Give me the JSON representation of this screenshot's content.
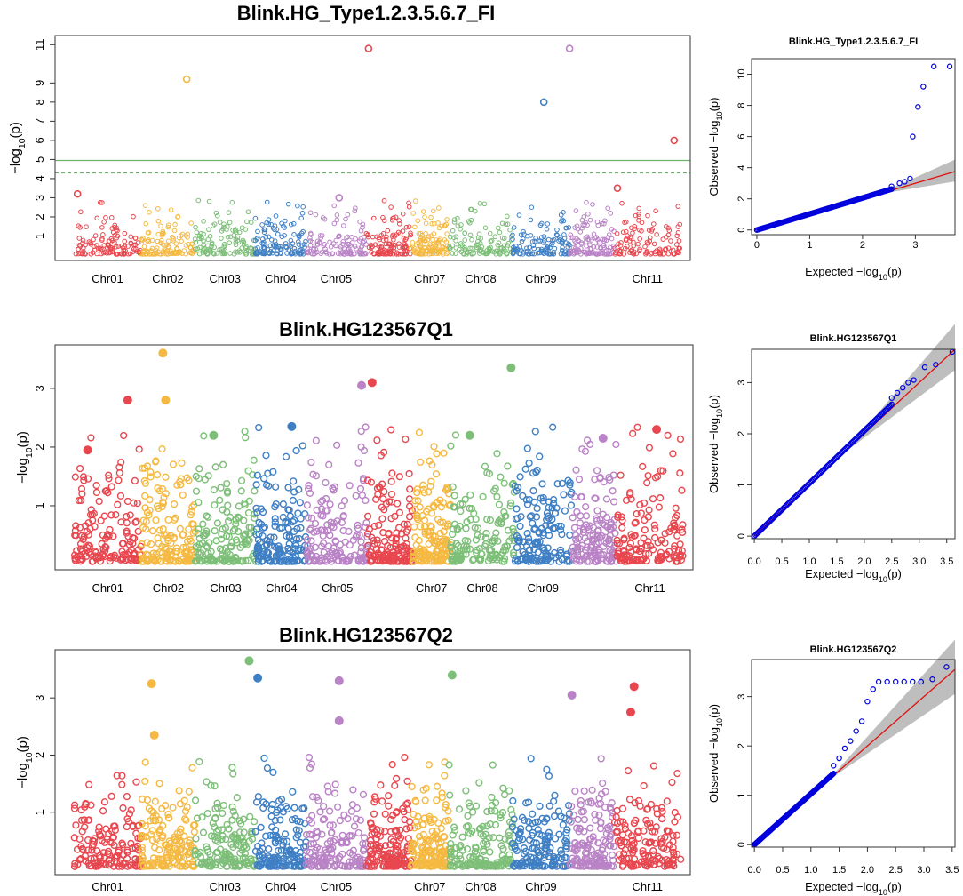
{
  "chart_data": [
    {
      "type": "scatter",
      "title": "Blink.HG_Type1.2.3.5.6.7_FI",
      "ylabel_prefix": "−log",
      "ylabel_sub": "10",
      "ylabel_suffix": "(p)",
      "ylim": [
        0,
        11.2
      ],
      "yticks": [
        1,
        2,
        3,
        4,
        5,
        6,
        7,
        8,
        9,
        11
      ],
      "threshold_solid": 4.95,
      "threshold_dashed": 4.3,
      "threshold_color": "#6BB36B",
      "chromosome_labels": [
        "Chr01",
        "Chr02",
        "Chr03",
        "Chr04",
        "Chr05",
        "Chr07",
        "Chr08",
        "Chr09",
        "Chr11"
      ],
      "label_positions": [
        1,
        2,
        3,
        4,
        5,
        7,
        8,
        9,
        11
      ],
      "seed": 11,
      "ambient_max": 1.6,
      "peaks": [
        {
          "chr": 1,
          "pos": 0.05,
          "value": 3.2
        },
        {
          "chr": 2,
          "pos": 0.85,
          "value": 9.2
        },
        {
          "chr": 5,
          "pos": 0.55,
          "value": 3.0
        },
        {
          "chr": 6,
          "pos": 0.05,
          "value": 10.8
        },
        {
          "chr": 9,
          "pos": 0.55,
          "value": 8.0
        },
        {
          "chr": 10,
          "pos": 0.0,
          "value": 10.8
        },
        {
          "chr": 11,
          "pos": 0.9,
          "value": 6.0
        },
        {
          "chr": 11,
          "pos": 0.05,
          "value": 3.5
        }
      ]
    },
    {
      "type": "scatter",
      "title": "Blink.HG123567Q1",
      "ylabel_prefix": "−log",
      "ylabel_sub": "10",
      "ylabel_suffix": "(p)",
      "ylim": [
        0,
        3.65
      ],
      "yticks": [
        1,
        2,
        3
      ],
      "chromosome_labels": [
        "Chr01",
        "Chr02",
        "Chr03",
        "Chr04",
        "Chr05",
        "Chr07",
        "Chr08",
        "Chr09",
        "Chr11"
      ],
      "label_positions": [
        1,
        2,
        3,
        4,
        5,
        7,
        8,
        9,
        11
      ],
      "seed": 23,
      "ambient_max": 1.3,
      "filled": true,
      "peaks": [
        {
          "chr": 1,
          "pos": 0.2,
          "value": 1.95
        },
        {
          "chr": 1,
          "pos": 0.8,
          "value": 2.8
        },
        {
          "chr": 2,
          "pos": 0.4,
          "value": 3.6
        },
        {
          "chr": 2,
          "pos": 0.45,
          "value": 2.8
        },
        {
          "chr": 3,
          "pos": 0.3,
          "value": 2.2
        },
        {
          "chr": 4,
          "pos": 0.7,
          "value": 2.35
        },
        {
          "chr": 5,
          "pos": 0.9,
          "value": 3.05
        },
        {
          "chr": 6,
          "pos": 0.1,
          "value": 3.1
        },
        {
          "chr": 8,
          "pos": 0.3,
          "value": 2.2
        },
        {
          "chr": 8,
          "pos": 0.95,
          "value": 3.35
        },
        {
          "chr": 10,
          "pos": 0.7,
          "value": 2.15
        },
        {
          "chr": 11,
          "pos": 0.6,
          "value": 2.3
        }
      ]
    },
    {
      "type": "scatter",
      "title": "Blink.HG123567Q2",
      "ylabel_prefix": "−log",
      "ylabel_sub": "10",
      "ylabel_suffix": "(p)",
      "ylim": [
        0,
        3.75
      ],
      "yticks": [
        1,
        2,
        3
      ],
      "chromosome_labels": [
        "Chr01",
        "Chr03",
        "Chr04",
        "Chr05",
        "Chr07",
        "Chr08",
        "Chr09",
        "Chr11"
      ],
      "label_positions": [
        1,
        3,
        4,
        5,
        7,
        8,
        9,
        11
      ],
      "seed": 37,
      "ambient_max": 1.1,
      "filled": true,
      "peaks": [
        {
          "chr": 2,
          "pos": 0.2,
          "value": 3.25
        },
        {
          "chr": 2,
          "pos": 0.25,
          "value": 2.35
        },
        {
          "chr": 3,
          "pos": 0.9,
          "value": 3.65
        },
        {
          "chr": 4,
          "pos": 0.05,
          "value": 3.35
        },
        {
          "chr": 5,
          "pos": 0.55,
          "value": 3.3
        },
        {
          "chr": 5,
          "pos": 0.55,
          "value": 2.6
        },
        {
          "chr": 8,
          "pos": 0.05,
          "value": 3.4
        },
        {
          "chr": 10,
          "pos": 0.05,
          "value": 3.05
        },
        {
          "chr": 11,
          "pos": 0.3,
          "value": 3.2
        },
        {
          "chr": 11,
          "pos": 0.25,
          "value": 2.75
        }
      ]
    },
    {
      "type": "qq",
      "title": "Blink.HG_Type1.2.3.5.6.7_FI",
      "xlabel_prefix": "Expected  −log",
      "ylabel_prefix": "Observed  −log",
      "label_sub": "10",
      "label_suffix": "(p)",
      "xlim": [
        -0.1,
        3.75
      ],
      "ylim": [
        -0.3,
        11
      ],
      "xticks": [
        0,
        1,
        2,
        3
      ],
      "yticks": [
        0,
        2,
        4,
        6,
        8,
        10
      ],
      "ci_start": 2.3,
      "ci_end_width": 1.4,
      "tail_points": [
        [
          2.55,
          2.8
        ],
        [
          2.7,
          3.0
        ],
        [
          2.8,
          3.1
        ],
        [
          2.9,
          3.3
        ],
        [
          2.95,
          6.0
        ],
        [
          3.05,
          7.9
        ],
        [
          3.15,
          9.2
        ],
        [
          3.35,
          10.5
        ],
        [
          3.65,
          10.5
        ]
      ],
      "slope": 1.0,
      "point_color": "#0000DD",
      "line_color": "#E01010"
    },
    {
      "type": "qq",
      "title": "Blink.HG123567Q1",
      "xlabel_prefix": "Expected  −log",
      "ylabel_prefix": "Observed  −log",
      "label_sub": "10",
      "label_suffix": "(p)",
      "xlim": [
        -0.05,
        3.65
      ],
      "ylim": [
        -0.05,
        3.65
      ],
      "xticks": [
        0.0,
        0.5,
        1.0,
        1.5,
        2.0,
        2.5,
        3.0,
        3.5
      ],
      "yticks": [
        0,
        1,
        2,
        3
      ],
      "ci_start": 1.6,
      "ci_end_width": 0.9,
      "tail_points": [
        [
          2.5,
          2.7
        ],
        [
          2.6,
          2.8
        ],
        [
          2.7,
          2.9
        ],
        [
          2.8,
          3.0
        ],
        [
          2.9,
          3.05
        ],
        [
          3.1,
          3.3
        ],
        [
          3.3,
          3.35
        ],
        [
          3.6,
          3.6
        ]
      ],
      "slope": 1.0,
      "point_color": "#0000DD",
      "line_color": "#E01010"
    },
    {
      "type": "qq",
      "title": "Blink.HG123567Q2",
      "xlabel_prefix": "Expected  −log",
      "ylabel_prefix": "Observed  −log",
      "label_sub": "10",
      "label_suffix": "(p)",
      "xlim": [
        -0.05,
        3.55
      ],
      "ylim": [
        -0.05,
        3.75
      ],
      "xticks": [
        0.0,
        0.5,
        1.0,
        1.5,
        2.0,
        2.5,
        3.0,
        3.5
      ],
      "yticks": [
        0,
        1,
        2,
        3
      ],
      "ci_start": 1.3,
      "ci_end_width": 1.1,
      "tail_points": [
        [
          1.4,
          1.6
        ],
        [
          1.5,
          1.75
        ],
        [
          1.6,
          1.95
        ],
        [
          1.7,
          2.1
        ],
        [
          1.8,
          2.3
        ],
        [
          1.9,
          2.5
        ],
        [
          2.0,
          2.9
        ],
        [
          2.1,
          3.15
        ],
        [
          2.2,
          3.3
        ],
        [
          2.35,
          3.3
        ],
        [
          2.5,
          3.3
        ],
        [
          2.65,
          3.3
        ],
        [
          2.8,
          3.3
        ],
        [
          2.95,
          3.3
        ],
        [
          3.15,
          3.35
        ],
        [
          3.4,
          3.6
        ]
      ],
      "slope": 1.0,
      "point_color": "#0000DD",
      "line_color": "#E01010"
    }
  ],
  "colors": {
    "chr1": "#E8474F",
    "chr2": "#F5B942",
    "chr3": "#7DBF78",
    "chr4": "#3F7FC4",
    "chr5": "#B983C6",
    "chr6": "#E8474F",
    "chr7": "#F5B942",
    "chr8": "#7DBF78",
    "chr9": "#3F7FC4",
    "chr10": "#B983C6",
    "chr11": "#E8474F",
    "ci_band": "#BEBEBE"
  }
}
